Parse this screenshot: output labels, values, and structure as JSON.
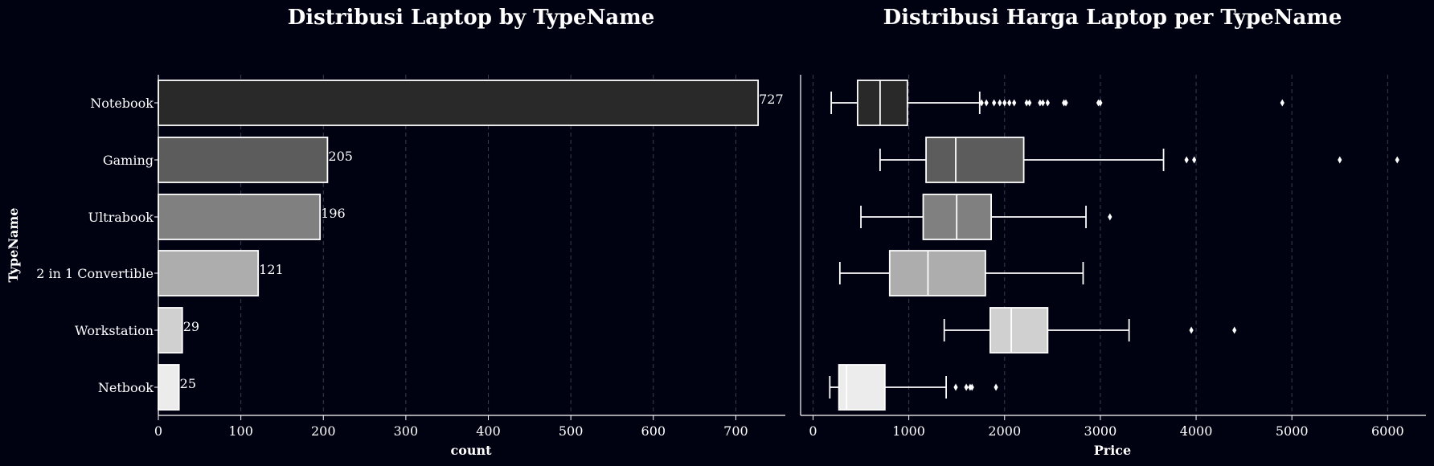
{
  "chart_data": [
    {
      "type": "bar",
      "orientation": "horizontal",
      "title": "Distribusi Laptop by TypeName",
      "xlabel": "count",
      "ylabel": "TypeName",
      "categories": [
        "Notebook",
        "Gaming",
        "Ultrabook",
        "2 in 1 Convertible",
        "Workstation",
        "Netbook"
      ],
      "values": [
        727,
        205,
        196,
        121,
        29,
        25
      ],
      "data_labels": [
        "727",
        "205",
        "196",
        "121",
        "29",
        "25"
      ],
      "xlim": [
        0,
        760
      ],
      "xticks": [
        0,
        100,
        200,
        300,
        400,
        500,
        600,
        700
      ],
      "colors": [
        "#292929",
        "#5c5c5c",
        "#808080",
        "#adadad",
        "#d0d0d0",
        "#ececec"
      ],
      "grid": "vertical dashed"
    },
    {
      "type": "box",
      "orientation": "horizontal",
      "title": "Distribusi Harga Laptop per TypeName",
      "xlabel": "Price",
      "categories": [
        "Notebook",
        "Gaming",
        "Ultrabook",
        "2 in 1 Convertible",
        "Workstation",
        "Netbook"
      ],
      "xlim": [
        -130,
        6400
      ],
      "xticks": [
        0,
        1000,
        2000,
        3000,
        4000,
        5000,
        6000
      ],
      "colors": [
        "#292929",
        "#5c5c5c",
        "#808080",
        "#adadad",
        "#d0d0d0",
        "#ececec"
      ],
      "boxes": [
        {
          "name": "Notebook",
          "whisker_low": 190,
          "q1": 465,
          "median": 700,
          "q3": 985,
          "whisker_high": 1740,
          "outliers": [
            1760,
            1810,
            1890,
            1950,
            2000,
            2050,
            2100,
            2230,
            2260,
            2370,
            2400,
            2450,
            2620,
            2640,
            2980,
            3000,
            4900
          ]
        },
        {
          "name": "Gaming",
          "whisker_low": 700,
          "q1": 1180,
          "median": 1490,
          "q3": 2200,
          "whisker_high": 3660,
          "outliers": [
            3900,
            3980,
            5500,
            6100
          ]
        },
        {
          "name": "Ultrabook",
          "whisker_low": 500,
          "q1": 1150,
          "median": 1500,
          "q3": 1860,
          "whisker_high": 2850,
          "outliers": [
            3100
          ]
        },
        {
          "name": "2 in 1 Convertible",
          "whisker_low": 280,
          "q1": 800,
          "median": 1200,
          "q3": 1800,
          "whisker_high": 2820,
          "outliers": []
        },
        {
          "name": "Workstation",
          "whisker_low": 1370,
          "q1": 1850,
          "median": 2070,
          "q3": 2450,
          "whisker_high": 3300,
          "outliers": [
            3950,
            4400
          ]
        },
        {
          "name": "Netbook",
          "whisker_low": 175,
          "q1": 270,
          "median": 350,
          "q3": 750,
          "whisker_high": 1390,
          "outliers": [
            1490,
            1600,
            1640,
            1660,
            1910
          ]
        }
      ],
      "grid": "vertical dashed"
    }
  ]
}
